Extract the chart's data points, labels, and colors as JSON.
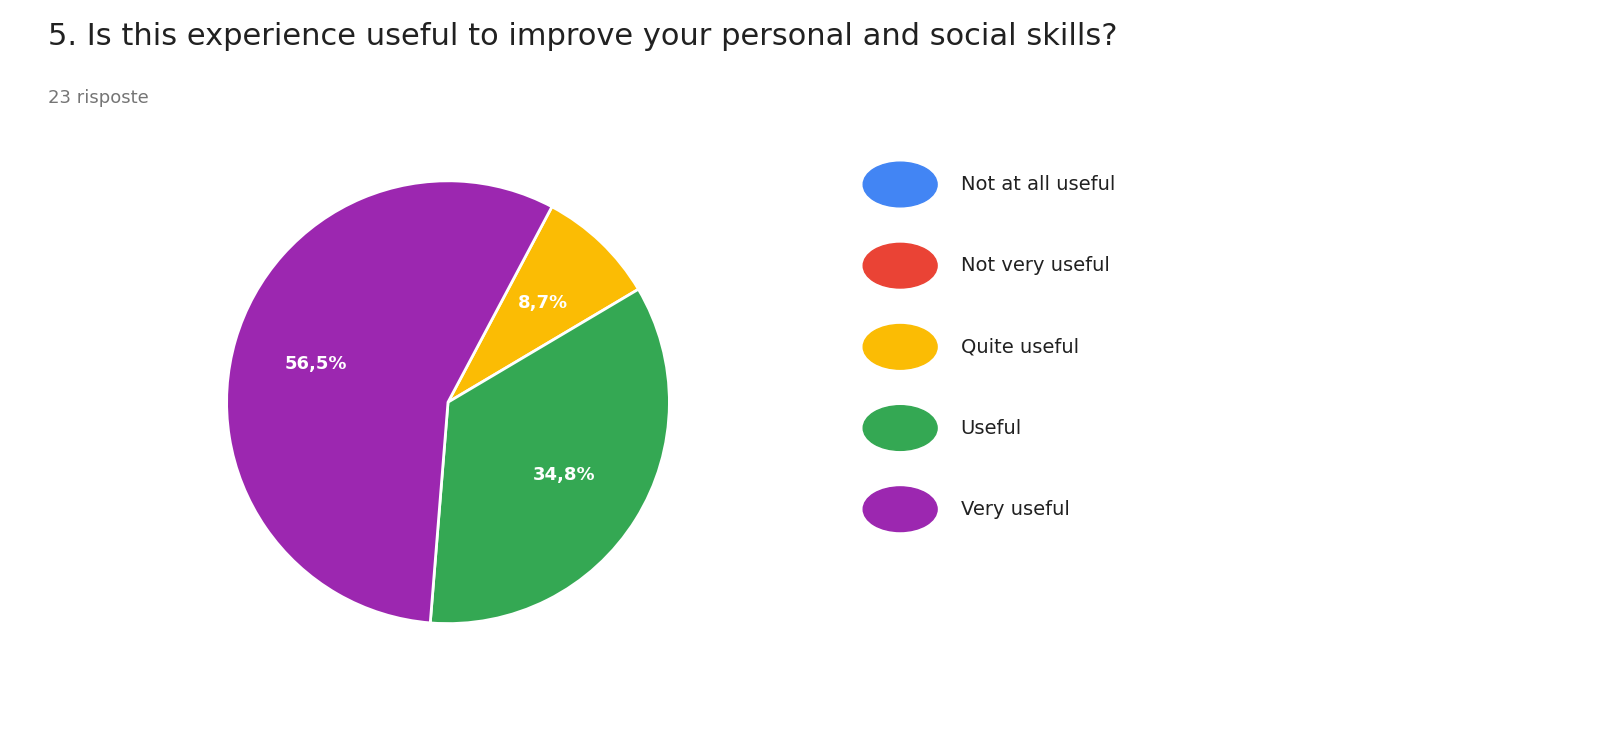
{
  "title": "5. Is this experience useful to improve your personal and social skills?",
  "subtitle": "23 risposte",
  "labels": [
    "Not at all useful",
    "Not very useful",
    "Quite useful",
    "Useful",
    "Very useful"
  ],
  "values": [
    0,
    0,
    8.7,
    34.8,
    56.5
  ],
  "colors": [
    "#4285F4",
    "#EA4335",
    "#FBBC04",
    "#34A853",
    "#9C27B0"
  ],
  "pct_labels": [
    "",
    "",
    "8,7%",
    "34,8%",
    "56,5%"
  ],
  "background_color": "#ffffff",
  "title_fontsize": 22,
  "subtitle_fontsize": 13,
  "legend_fontsize": 14
}
